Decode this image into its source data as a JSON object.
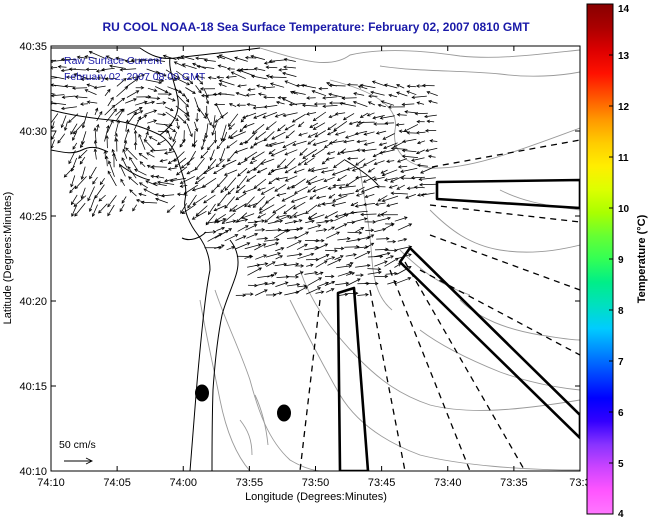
{
  "title": "RU COOL  NOAA-18  Sea Surface Temperature:  February 02, 2007 0810 GMT",
  "legend": {
    "line1": "Raw Surface Current",
    "line2": "February 02, 2007 08:00 GMT"
  },
  "scale_label": "50 cm/s",
  "x_axis": {
    "label": "Longitude (Degrees:Minutes)",
    "ticks": [
      "74:10",
      "74:05",
      "74:00",
      "73:55",
      "73:50",
      "73:45",
      "73:40",
      "73:35",
      "73:3"
    ]
  },
  "y_axis": {
    "label": "Latitude (Degrees:Minutes)",
    "ticks": [
      "40:35",
      "40:30",
      "40:25",
      "40:20",
      "40:15",
      "40:10"
    ]
  },
  "colorbar": {
    "label": "Temperature (°C)",
    "ticks": [
      "14",
      "13",
      "12",
      "11",
      "10",
      "9",
      "8",
      "7",
      "6",
      "5",
      "4"
    ],
    "min": 4,
    "max": 14,
    "colors": [
      "#ff77ff",
      "#ff55ff",
      "#cc44ff",
      "#8833ff",
      "#3300ff",
      "#0000ff",
      "#0044ff",
      "#0088ff",
      "#00ccff",
      "#00e0c0",
      "#00ee88",
      "#33ff55",
      "#66ff33",
      "#aaff00",
      "#ddff00",
      "#ffee00",
      "#ffcc00",
      "#ff9900",
      "#ff5500",
      "#ff1100",
      "#dd0000",
      "#aa0000",
      "#880000"
    ]
  },
  "colors": {
    "title": "#1a1aa8",
    "coastline": "#000000",
    "bathymetry": "#9a9a9a",
    "vectors": "#000000"
  }
}
